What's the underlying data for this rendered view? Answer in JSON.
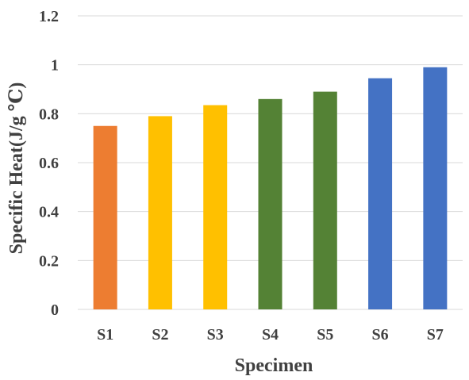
{
  "chart_data": {
    "type": "bar",
    "title": "",
    "xlabel": "Specimen",
    "ylabel": "Specific Heat(J/g ℃)",
    "categories": [
      "S1",
      "S2",
      "S3",
      "S4",
      "S5",
      "S6",
      "S7"
    ],
    "values": [
      0.75,
      0.79,
      0.835,
      0.86,
      0.89,
      0.945,
      0.99
    ],
    "bar_colors": [
      "#ED7D31",
      "#FFC000",
      "#FFC000",
      "#548235",
      "#548235",
      "#4472C4",
      "#4472C4"
    ],
    "ylim": [
      0,
      1.2
    ],
    "yticks": [
      "0",
      "0.2",
      "0.4",
      "0.6",
      "0.8",
      "1",
      "1.2"
    ],
    "grid": true,
    "legend": "none"
  }
}
